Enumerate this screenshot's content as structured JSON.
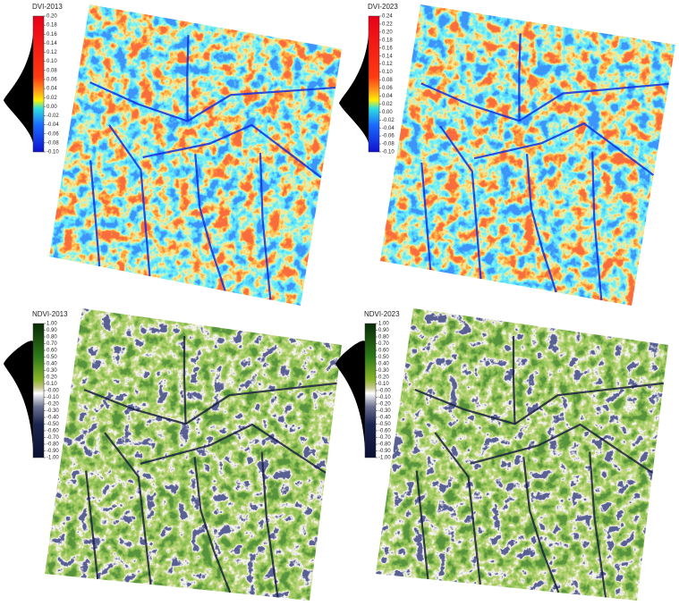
{
  "panels": [
    {
      "title": "DVI-2013",
      "ticks": [
        {
          "value": 0.2,
          "label": "0.20"
        },
        {
          "value": 0.18,
          "label": "0.18"
        },
        {
          "value": 0.16,
          "label": "0.16"
        },
        {
          "value": 0.14,
          "label": "0.14"
        },
        {
          "value": 0.12,
          "label": "0.12"
        },
        {
          "value": 0.1,
          "label": "0.10"
        },
        {
          "value": 0.08,
          "label": "0.08"
        },
        {
          "value": 0.06,
          "label": "0.06"
        },
        {
          "value": 0.04,
          "label": "0.04"
        },
        {
          "value": 0.02,
          "label": "0.02"
        },
        {
          "value": 0,
          "label": "0.00"
        },
        {
          "value": -0.02,
          "label": "-0.02"
        },
        {
          "value": -0.04,
          "label": "-0.04"
        },
        {
          "value": -0.06,
          "label": "-0.06"
        },
        {
          "value": -0.08,
          "label": "-0.08"
        },
        {
          "value": -0.1,
          "label": "-0.10"
        }
      ]
    },
    {
      "title": "DVI-2023",
      "ticks": [
        {
          "value": 0.24,
          "label": "0.24"
        },
        {
          "value": 0.22,
          "label": "0.22"
        },
        {
          "value": 0.2,
          "label": "0.20"
        },
        {
          "value": 0.18,
          "label": "0.18"
        },
        {
          "value": 0.16,
          "label": "0.16"
        },
        {
          "value": 0.14,
          "label": "0.14"
        },
        {
          "value": 0.12,
          "label": "0.12"
        },
        {
          "value": 0.1,
          "label": "0.10"
        },
        {
          "value": 0.08,
          "label": "0.08"
        },
        {
          "value": 0.06,
          "label": "0.06"
        },
        {
          "value": 0.04,
          "label": "0.04"
        },
        {
          "value": 0.02,
          "label": "0.02"
        },
        {
          "value": 0,
          "label": "0.00"
        },
        {
          "value": -0.02,
          "label": "-0.02"
        },
        {
          "value": -0.04,
          "label": "-0.04"
        },
        {
          "value": -0.06,
          "label": "-0.06"
        },
        {
          "value": -0.08,
          "label": "-0.08"
        },
        {
          "value": -0.1,
          "label": "-0.10"
        }
      ]
    },
    {
      "title": "NDVI-2013",
      "ticks": [
        {
          "value": 1,
          "label": "1.00"
        },
        {
          "value": 0.9,
          "label": "0.90"
        },
        {
          "value": 0.8,
          "label": "0.80"
        },
        {
          "value": 0.7,
          "label": "0.70"
        },
        {
          "value": 0.6,
          "label": "0.60"
        },
        {
          "value": 0.5,
          "label": "0.50"
        },
        {
          "value": 0.4,
          "label": "0.40"
        },
        {
          "value": 0.3,
          "label": "0.30"
        },
        {
          "value": 0.2,
          "label": "0.20"
        },
        {
          "value": 0.1,
          "label": "0.10"
        },
        {
          "value": 0,
          "label": "-0.00"
        },
        {
          "value": -0.1,
          "label": "-0.10"
        },
        {
          "value": -0.2,
          "label": "-0.20"
        },
        {
          "value": -0.3,
          "label": "-0.30"
        },
        {
          "value": -0.4,
          "label": "-0.40"
        },
        {
          "value": -0.5,
          "label": "-0.50"
        },
        {
          "value": -0.6,
          "label": "-0.60"
        },
        {
          "value": -0.7,
          "label": "-0.70"
        },
        {
          "value": -0.8,
          "label": "-0.80"
        },
        {
          "value": -0.9,
          "label": "-0.90"
        },
        {
          "value": -1,
          "label": "-1.00"
        }
      ]
    },
    {
      "title": "NDVI-2023",
      "ticks": [
        {
          "value": 1,
          "label": "1.00"
        },
        {
          "value": 0.9,
          "label": "0.90"
        },
        {
          "value": 0.8,
          "label": "0.80"
        },
        {
          "value": 0.7,
          "label": "0.70"
        },
        {
          "value": 0.6,
          "label": "0.60"
        },
        {
          "value": 0.5,
          "label": "0.50"
        },
        {
          "value": 0.4,
          "label": "0.40"
        },
        {
          "value": 0.3,
          "label": "0.30"
        },
        {
          "value": 0.2,
          "label": "0.20"
        },
        {
          "value": 0.1,
          "label": "0.10"
        },
        {
          "value": 0,
          "label": "-0.00"
        },
        {
          "value": -0.1,
          "label": "-0.10"
        },
        {
          "value": -0.2,
          "label": "-0.20"
        },
        {
          "value": -0.3,
          "label": "-0.30"
        },
        {
          "value": -0.4,
          "label": "-0.40"
        },
        {
          "value": -0.5,
          "label": "-0.50"
        },
        {
          "value": -0.6,
          "label": "-0.60"
        },
        {
          "value": -0.7,
          "label": "-0.70"
        },
        {
          "value": -0.8,
          "label": "-0.80"
        },
        {
          "value": -0.9,
          "label": "-0.90"
        },
        {
          "value": -1,
          "label": "-1.00"
        }
      ]
    }
  ]
}
